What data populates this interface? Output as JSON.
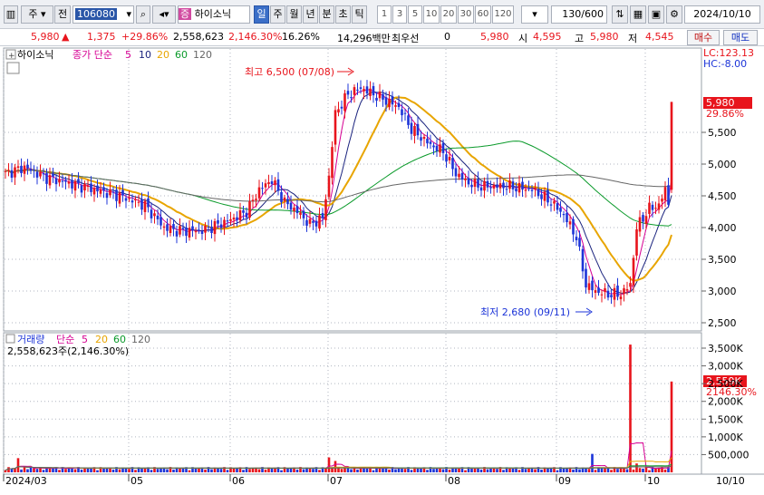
{
  "toolbar": {
    "market": "주",
    "type_btn": "전",
    "code": "106080",
    "stock_badge": "증",
    "stock_name": "하이소닉",
    "periods": [
      "일",
      "주",
      "월",
      "년",
      "분",
      "초",
      "틱"
    ],
    "active_period": "일",
    "intervals": [
      "1",
      "3",
      "5",
      "10",
      "20",
      "30",
      "60",
      "120"
    ],
    "count": "130/600",
    "date": "2024/10/10"
  },
  "info": {
    "price": "5,980",
    "change": "1,375",
    "change_pct": "+29.86%",
    "volume": "2,558,623",
    "volume_pct": "2,146.30%",
    "turnover": "16.26%",
    "amount": "14,296백만",
    "best_label": "최우선",
    "best_qty": "0",
    "best_price": "5,980",
    "open_label": "시",
    "open": "4,595",
    "high_label": "고",
    "high": "5,980",
    "low_label": "저",
    "low": "4,545",
    "buy_label": "매수",
    "sell_label": "매도"
  },
  "price_panel": {
    "title": "하이소닉",
    "ma_label": "종가 단순",
    "ma_periods": [
      "5",
      "10",
      "20",
      "60",
      "120"
    ],
    "ma_colors": [
      "#d60093",
      "#1a237e",
      "#e8a500",
      "#0a9a2a",
      "#666666"
    ],
    "lc": "LC:123.13",
    "hc": "HC:-8.00",
    "high_note": "최고 6,500 (07/08)",
    "low_note": "최저 2,680 (09/11)",
    "current_price": "5,980",
    "current_pct": "29.86%",
    "y_ticks": [
      "5,500",
      "5,000",
      "4,500",
      "4,000",
      "3,500",
      "3,000",
      "2,500"
    ]
  },
  "volume_panel": {
    "title": "거래량",
    "ma_label": "단순",
    "ma_periods": [
      "5",
      "20",
      "60",
      "120"
    ],
    "ma_colors": [
      "#d60093",
      "#e8a500",
      "#0a9a2a",
      "#666666"
    ],
    "summary": "2,558,623주(2,146.30%)",
    "current": "2,559K",
    "current_pct": "2146.30%",
    "y_ticks": [
      "3,500K",
      "3,000K",
      "2,500K",
      "2,000K",
      "1,500K",
      "1,000K",
      "500,000"
    ]
  },
  "x_axis": {
    "labels": [
      "2024/03",
      "05",
      "06",
      "07",
      "08",
      "09",
      "10"
    ],
    "end_label": "10/10"
  },
  "colors": {
    "up": "#e8141c",
    "down": "#1c34d8",
    "ma5": "#d60093",
    "ma10": "#1a237e",
    "ma20": "#e8a500",
    "ma60": "#0a9a2a",
    "ma120": "#666666"
  }
}
